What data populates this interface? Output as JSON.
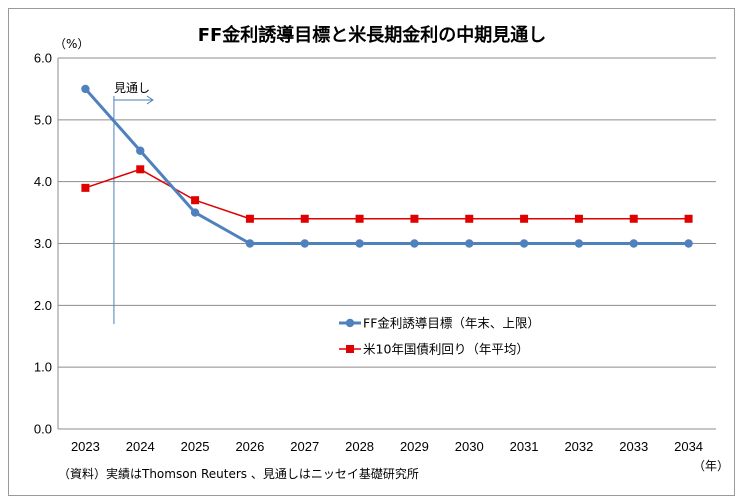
{
  "chart_data": {
    "type": "line",
    "title": "FF金利誘導目標と米長期金利の中期見通し",
    "y_unit_label": "（%）",
    "x_unit_label": "（年）",
    "categories": [
      "2023",
      "2024",
      "2025",
      "2026",
      "2027",
      "2028",
      "2029",
      "2030",
      "2031",
      "2032",
      "2033",
      "2034"
    ],
    "ylim": [
      0,
      6
    ],
    "yticks": [
      "0.0",
      "1.0",
      "2.0",
      "3.0",
      "4.0",
      "5.0",
      "6.0"
    ],
    "grid": true,
    "legend_position": "center-right",
    "series": [
      {
        "name": "FF金利誘導目標（年末、上限）",
        "color": "#4f81bd",
        "marker": "circle",
        "values": [
          5.5,
          4.5,
          3.5,
          3.0,
          3.0,
          3.0,
          3.0,
          3.0,
          3.0,
          3.0,
          3.0,
          3.0
        ]
      },
      {
        "name": "米10年国債利回り（年平均）",
        "color": "#e00000",
        "marker": "square",
        "values": [
          3.9,
          4.2,
          3.7,
          3.4,
          3.4,
          3.4,
          3.4,
          3.4,
          3.4,
          3.4,
          3.4,
          3.4
        ]
      }
    ],
    "annotation": {
      "text": "見通し",
      "between": [
        "2023",
        "2024"
      ]
    },
    "source_note": "（資料）実績はThomson Reuters 、見通しはニッセイ基礎研究所"
  }
}
